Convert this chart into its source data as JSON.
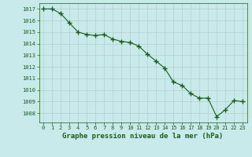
{
  "x": [
    0,
    1,
    2,
    3,
    4,
    5,
    6,
    7,
    8,
    9,
    10,
    11,
    12,
    13,
    14,
    15,
    16,
    17,
    18,
    19,
    20,
    21,
    22,
    23
  ],
  "y": [
    1017.0,
    1017.0,
    1016.6,
    1015.8,
    1015.0,
    1014.8,
    1014.7,
    1014.8,
    1014.4,
    1014.2,
    1014.1,
    1013.8,
    1013.1,
    1012.5,
    1011.9,
    1010.7,
    1010.4,
    1009.7,
    1009.3,
    1009.3,
    1007.7,
    1008.3,
    1009.1,
    1009.0
  ],
  "line_color": "#1a5c1a",
  "marker": "+",
  "marker_size": 4,
  "bg_color": "#c8eaea",
  "grid_color": "#adc8c8",
  "text_color": "#1a5c1a",
  "ylabel_ticks": [
    1008,
    1009,
    1010,
    1011,
    1012,
    1013,
    1014,
    1015,
    1016,
    1017
  ],
  "xlabel": "Graphe pression niveau de la mer (hPa)",
  "ylim": [
    1007.2,
    1017.5
  ],
  "xlim": [
    -0.5,
    23.5
  ],
  "tick_fontsize": 5.0,
  "xlabel_fontsize": 6.5
}
